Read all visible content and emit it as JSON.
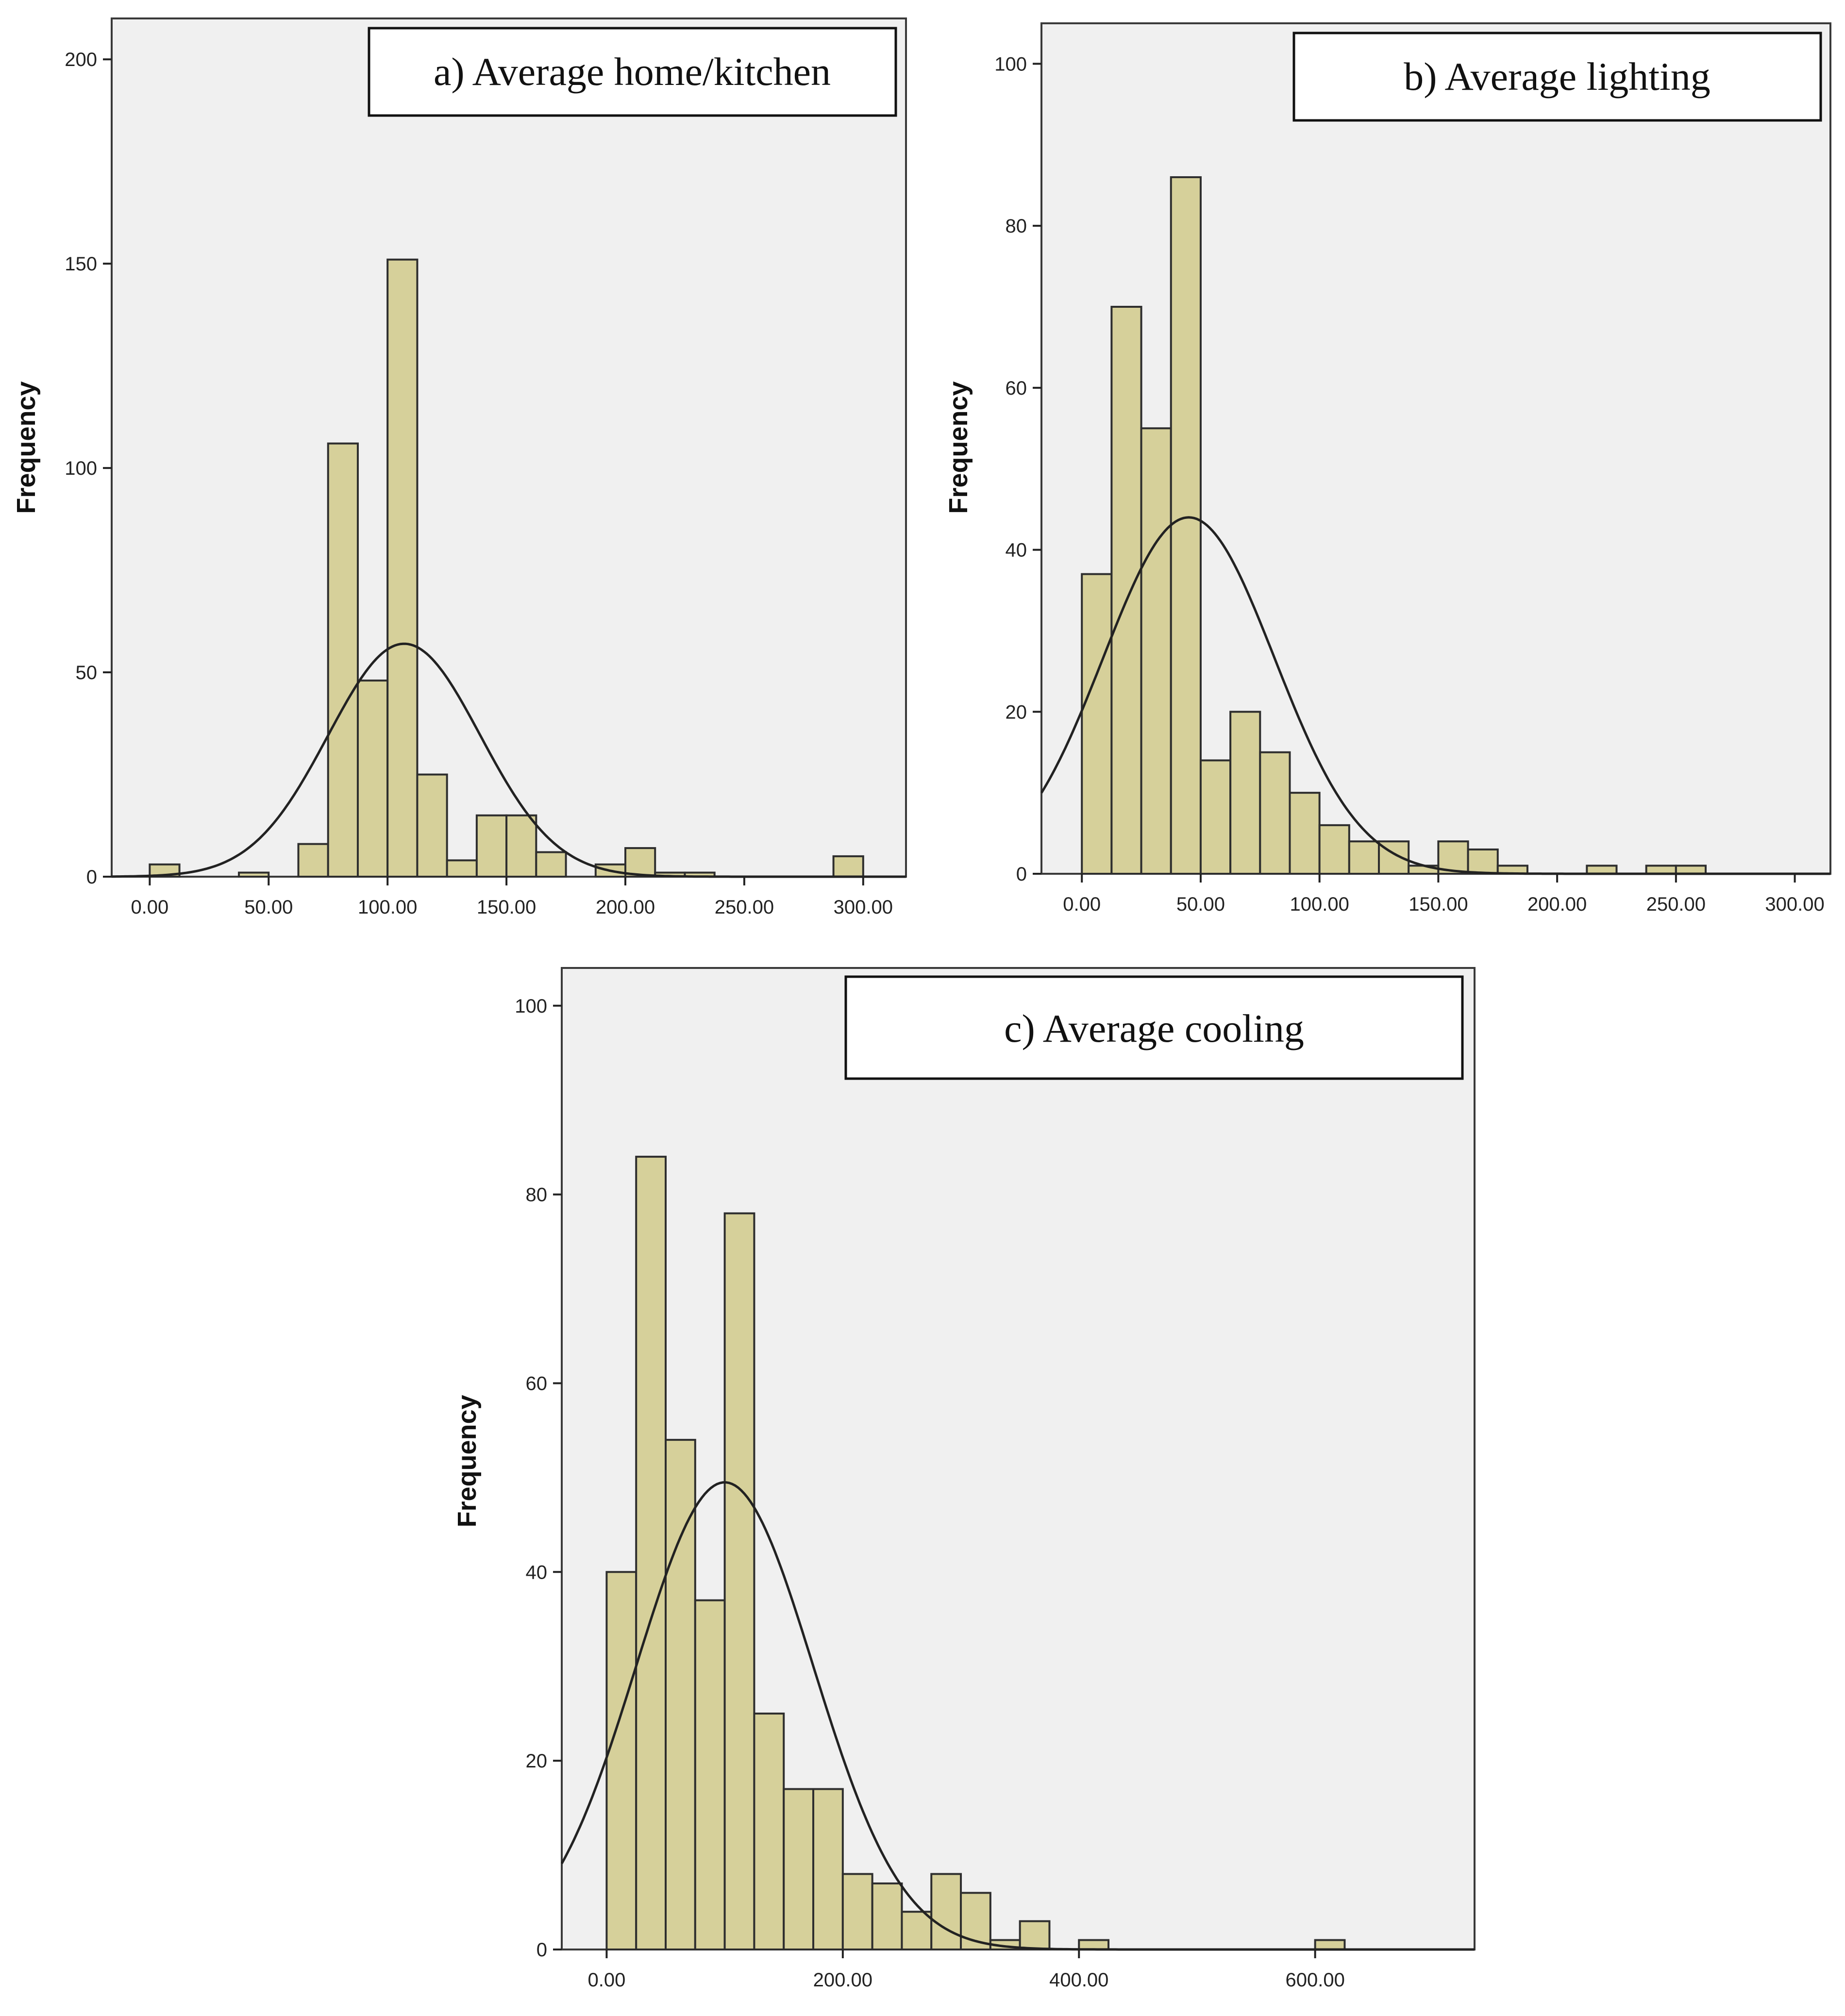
{
  "chart_data": [
    {
      "id": "a",
      "type": "bar",
      "title": "a) Average home/kitchen",
      "xlabel": "",
      "ylabel": "Frequency",
      "xlim": [
        -16,
        318
      ],
      "ylim": [
        0,
        210
      ],
      "bin_width": 12.5,
      "xticks": [
        0,
        50,
        100,
        150,
        200,
        250,
        300
      ],
      "xtick_labels": [
        "0.00",
        "50.00",
        "100.00",
        "150.00",
        "200.00",
        "250.00",
        "300.00"
      ],
      "yticks": [
        0,
        50,
        100,
        150,
        200
      ],
      "ytick_labels": [
        "0",
        "50",
        "100",
        "150",
        "200"
      ],
      "grid": false,
      "bins": [
        {
          "start": 0,
          "end": 12.5,
          "count": 3
        },
        {
          "start": 37.5,
          "end": 50,
          "count": 1
        },
        {
          "start": 62.5,
          "end": 75,
          "count": 8
        },
        {
          "start": 75,
          "end": 87.5,
          "count": 106
        },
        {
          "start": 87.5,
          "end": 100,
          "count": 48
        },
        {
          "start": 100,
          "end": 112.5,
          "count": 151
        },
        {
          "start": 112.5,
          "end": 125,
          "count": 25
        },
        {
          "start": 125,
          "end": 137.5,
          "count": 4
        },
        {
          "start": 137.5,
          "end": 150,
          "count": 15
        },
        {
          "start": 150,
          "end": 162.5,
          "count": 15
        },
        {
          "start": 162.5,
          "end": 175,
          "count": 6
        },
        {
          "start": 187.5,
          "end": 200,
          "count": 3
        },
        {
          "start": 200,
          "end": 212.5,
          "count": 7
        },
        {
          "start": 212.5,
          "end": 225,
          "count": 1
        },
        {
          "start": 225,
          "end": 237.5,
          "count": 1
        },
        {
          "start": 287.5,
          "end": 300,
          "count": 5
        }
      ],
      "normal_curve": {
        "mean": 107,
        "peak": 57,
        "sd": 32
      }
    },
    {
      "id": "b",
      "type": "bar",
      "title": "b) Average lighting",
      "xlabel": "",
      "ylabel": "Frequency",
      "xlim": [
        -17,
        315
      ],
      "ylim": [
        0,
        105
      ],
      "bin_width": 12.5,
      "xticks": [
        0,
        50,
        100,
        150,
        200,
        250,
        300
      ],
      "xtick_labels": [
        "0.00",
        "50.00",
        "100.00",
        "150.00",
        "200.00",
        "250.00",
        "300.00"
      ],
      "yticks": [
        0,
        20,
        40,
        60,
        80,
        100
      ],
      "ytick_labels": [
        "0",
        "20",
        "40",
        "60",
        "80",
        "100"
      ],
      "grid": false,
      "bins": [
        {
          "start": 0,
          "end": 12.5,
          "count": 37
        },
        {
          "start": 12.5,
          "end": 25,
          "count": 70
        },
        {
          "start": 25,
          "end": 37.5,
          "count": 55
        },
        {
          "start": 37.5,
          "end": 50,
          "count": 86
        },
        {
          "start": 50,
          "end": 62.5,
          "count": 14
        },
        {
          "start": 62.5,
          "end": 75,
          "count": 20
        },
        {
          "start": 75,
          "end": 87.5,
          "count": 15
        },
        {
          "start": 87.5,
          "end": 100,
          "count": 10
        },
        {
          "start": 100,
          "end": 112.5,
          "count": 6
        },
        {
          "start": 112.5,
          "end": 125,
          "count": 4
        },
        {
          "start": 125,
          "end": 137.5,
          "count": 4
        },
        {
          "start": 137.5,
          "end": 150,
          "count": 1
        },
        {
          "start": 150,
          "end": 162.5,
          "count": 4
        },
        {
          "start": 162.5,
          "end": 175,
          "count": 3
        },
        {
          "start": 175,
          "end": 187.5,
          "count": 1
        },
        {
          "start": 212.5,
          "end": 225,
          "count": 1
        },
        {
          "start": 237.5,
          "end": 250,
          "count": 1
        },
        {
          "start": 250,
          "end": 262.5,
          "count": 1
        }
      ],
      "normal_curve": {
        "mean": 45,
        "peak": 44,
        "sd": 36
      }
    },
    {
      "id": "c",
      "type": "bar",
      "title": "c) Average cooling",
      "xlabel": "",
      "ylabel": "Frequency",
      "xlim": [
        -38,
        735
      ],
      "ylim": [
        0,
        104
      ],
      "bin_width": 25,
      "xticks": [
        0,
        200,
        400,
        600
      ],
      "xtick_labels": [
        "0.00",
        "200.00",
        "400.00",
        "600.00"
      ],
      "yticks": [
        0,
        20,
        40,
        60,
        80,
        100
      ],
      "ytick_labels": [
        "0",
        "20",
        "40",
        "60",
        "80",
        "100"
      ],
      "grid": false,
      "bins": [
        {
          "start": 0,
          "end": 25,
          "count": 40
        },
        {
          "start": 25,
          "end": 50,
          "count": 84
        },
        {
          "start": 50,
          "end": 75,
          "count": 54
        },
        {
          "start": 75,
          "end": 100,
          "count": 37
        },
        {
          "start": 100,
          "end": 125,
          "count": 78
        },
        {
          "start": 125,
          "end": 150,
          "count": 25
        },
        {
          "start": 150,
          "end": 175,
          "count": 17
        },
        {
          "start": 175,
          "end": 200,
          "count": 17
        },
        {
          "start": 200,
          "end": 225,
          "count": 8
        },
        {
          "start": 225,
          "end": 250,
          "count": 7
        },
        {
          "start": 250,
          "end": 275,
          "count": 4
        },
        {
          "start": 275,
          "end": 300,
          "count": 8
        },
        {
          "start": 300,
          "end": 325,
          "count": 6
        },
        {
          "start": 325,
          "end": 350,
          "count": 1
        },
        {
          "start": 350,
          "end": 375,
          "count": 3
        },
        {
          "start": 400,
          "end": 425,
          "count": 1
        },
        {
          "start": 600,
          "end": 625,
          "count": 1
        }
      ],
      "normal_curve": {
        "mean": 100,
        "peak": 49.5,
        "sd": 75
      }
    }
  ]
}
